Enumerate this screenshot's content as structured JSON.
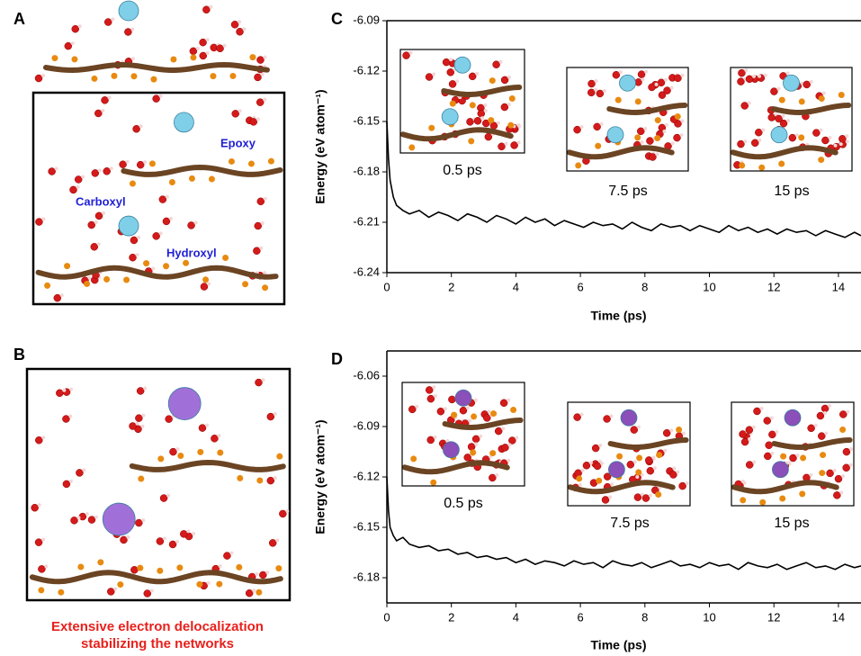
{
  "panel_labels": [
    "A",
    "B",
    "C",
    "D"
  ],
  "annotations": {
    "epoxy": "Epoxy",
    "carboxyl": "Carboxyl",
    "hydroxyl": "Hydroxyl",
    "caption_line1": "Extensive electron delocalization",
    "caption_line2": "stabilizing the networks"
  },
  "chart_data": [
    {
      "type": "line",
      "xlabel": "Time (ps)",
      "ylabel": "Energy (eV atom⁻¹)",
      "color": "#000000",
      "insets": [
        "0.5 ps",
        "7.5 ps",
        "15 ps"
      ],
      "xlim": [
        0,
        14.7
      ],
      "ylim": [
        -6.24,
        -6.09
      ],
      "xticks": [
        0,
        2,
        4,
        6,
        8,
        10,
        12,
        14
      ],
      "yticks": [
        -6.09,
        -6.12,
        -6.15,
        -6.18,
        -6.21,
        -6.24
      ],
      "x": [
        0,
        0.05,
        0.1,
        0.2,
        0.3,
        0.5,
        0.7,
        1,
        1.3,
        1.6,
        1.9,
        2.2,
        2.5,
        2.8,
        3.1,
        3.4,
        3.7,
        4,
        4.3,
        4.6,
        4.9,
        5.2,
        5.5,
        5.8,
        6.1,
        6.4,
        6.7,
        7,
        7.3,
        7.6,
        7.9,
        8.2,
        8.5,
        8.8,
        9.1,
        9.4,
        9.7,
        10,
        10.3,
        10.6,
        10.9,
        11.2,
        11.5,
        11.8,
        12.1,
        12.4,
        12.7,
        13,
        13.3,
        13.6,
        13.9,
        14.2,
        14.5,
        14.7
      ],
      "values": [
        -6.15,
        -6.172,
        -6.185,
        -6.195,
        -6.2,
        -6.203,
        -6.205,
        -6.203,
        -6.207,
        -6.204,
        -6.206,
        -6.209,
        -6.205,
        -6.207,
        -6.21,
        -6.206,
        -6.208,
        -6.211,
        -6.207,
        -6.21,
        -6.208,
        -6.212,
        -6.209,
        -6.211,
        -6.213,
        -6.21,
        -6.212,
        -6.211,
        -6.214,
        -6.21,
        -6.213,
        -6.215,
        -6.211,
        -6.213,
        -6.212,
        -6.215,
        -6.212,
        -6.214,
        -6.216,
        -6.212,
        -6.215,
        -6.213,
        -6.216,
        -6.214,
        -6.217,
        -6.214,
        -6.216,
        -6.215,
        -6.218,
        -6.215,
        -6.217,
        -6.219,
        -6.216,
        -6.218
      ]
    },
    {
      "type": "line",
      "xlabel": "Time (ps)",
      "ylabel": "Energy (eV atom⁻¹)",
      "color": "#000000",
      "insets": [
        "0.5 ps",
        "7.5 ps",
        "15 ps"
      ],
      "xlim": [
        0,
        14.7
      ],
      "ylim": [
        -6.195,
        -6.045
      ],
      "xticks": [
        0,
        2,
        4,
        6,
        8,
        10,
        12,
        14
      ],
      "yticks": [
        -6.06,
        -6.09,
        -6.12,
        -6.15,
        -6.18
      ],
      "x": [
        0,
        0.05,
        0.1,
        0.2,
        0.3,
        0.5,
        0.7,
        1,
        1.3,
        1.6,
        1.9,
        2.2,
        2.5,
        2.8,
        3.1,
        3.4,
        3.7,
        4,
        4.3,
        4.6,
        4.9,
        5.2,
        5.5,
        5.8,
        6.1,
        6.4,
        6.7,
        7,
        7.3,
        7.6,
        7.9,
        8.2,
        8.5,
        8.8,
        9.1,
        9.4,
        9.7,
        10,
        10.3,
        10.6,
        10.9,
        11.2,
        11.5,
        11.8,
        12.1,
        12.4,
        12.7,
        13,
        13.3,
        13.6,
        13.9,
        14.2,
        14.5,
        14.7
      ],
      "values": [
        -6.12,
        -6.14,
        -6.15,
        -6.155,
        -6.158,
        -6.156,
        -6.16,
        -6.162,
        -6.161,
        -6.164,
        -6.163,
        -6.166,
        -6.165,
        -6.168,
        -6.167,
        -6.169,
        -6.168,
        -6.171,
        -6.169,
        -6.172,
        -6.17,
        -6.171,
        -6.173,
        -6.17,
        -6.172,
        -6.171,
        -6.174,
        -6.17,
        -6.172,
        -6.173,
        -6.171,
        -6.174,
        -6.172,
        -6.17,
        -6.173,
        -6.172,
        -6.174,
        -6.171,
        -6.173,
        -6.172,
        -6.175,
        -6.171,
        -6.173,
        -6.174,
        -6.172,
        -6.175,
        -6.173,
        -6.171,
        -6.174,
        -6.173,
        -6.175,
        -6.172,
        -6.174,
        -6.173
      ]
    }
  ]
}
